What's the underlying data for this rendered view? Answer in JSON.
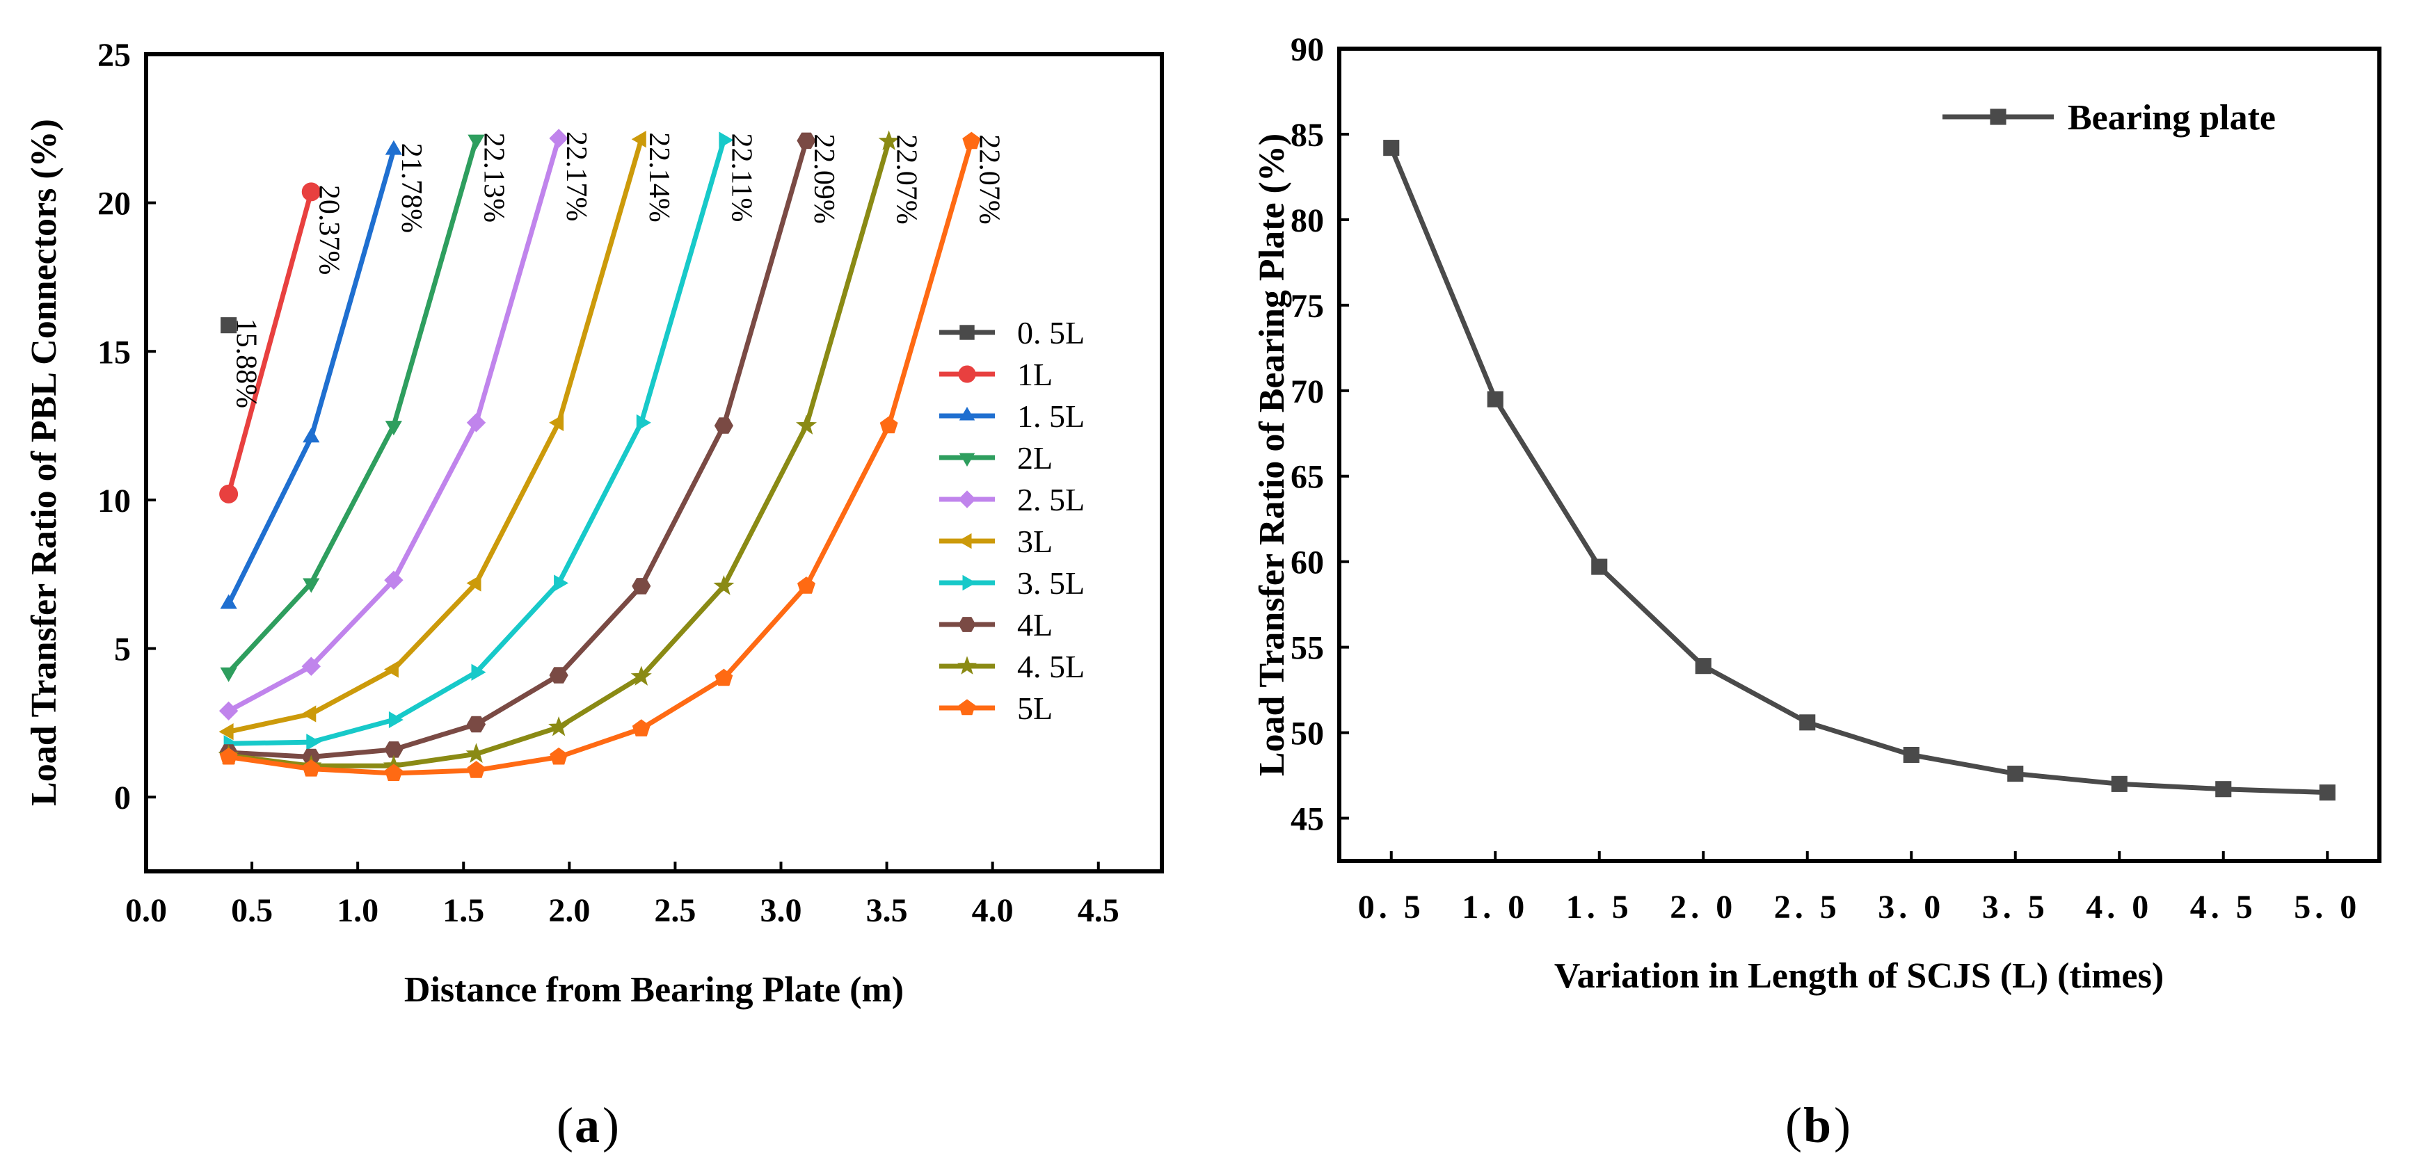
{
  "chart_data": [
    {
      "id": "a",
      "type": "line",
      "caption": "a",
      "xlabel": "Distance from Bearing Plate (m)",
      "ylabel": "Load Transfer Ratio of PBL Connectors (%)",
      "xlim": [
        0.0,
        4.8
      ],
      "ylim": [
        -2.5,
        25
      ],
      "xticks": [
        "0.0",
        "0.5",
        "1.0",
        "1.5",
        "2.0",
        "2.5",
        "3.0",
        "3.5",
        "4.0",
        "4.5"
      ],
      "xtick_values": [
        0,
        0.5,
        1.0,
        1.5,
        2.0,
        2.5,
        3.0,
        3.5,
        4.0,
        4.5
      ],
      "yticks": [
        "0",
        "5",
        "10",
        "15",
        "20",
        "25"
      ],
      "ytick_values": [
        0,
        5,
        10,
        15,
        20,
        25
      ],
      "series": [
        {
          "name": "0. 5L",
          "color": "#4a4a4a",
          "marker": "square",
          "x": [
            0.39
          ],
          "y": [
            15.88
          ],
          "end_label": "15.88%",
          "end_label_color": "#000000"
        },
        {
          "name": "1L",
          "color": "#e8403f",
          "marker": "circle",
          "x": [
            0.39,
            0.78
          ],
          "y": [
            10.2,
            20.37
          ],
          "end_label": "20.37%",
          "end_label_color": "#000000"
        },
        {
          "name": "1. 5L",
          "color": "#1f6fd0",
          "marker": "triangle-up",
          "x": [
            0.39,
            0.78,
            1.17
          ],
          "y": [
            6.5,
            12.1,
            21.78
          ],
          "end_label": "21.78%",
          "end_label_color": "#000000"
        },
        {
          "name": "2L",
          "color": "#2e9e5e",
          "marker": "triangle-down",
          "x": [
            0.39,
            0.78,
            1.17,
            1.56
          ],
          "y": [
            4.2,
            7.2,
            12.5,
            22.13
          ],
          "end_label": "22.13%",
          "end_label_color": "#000000"
        },
        {
          "name": "2. 5L",
          "color": "#c084ec",
          "marker": "diamond",
          "x": [
            0.39,
            0.78,
            1.17,
            1.56,
            1.95
          ],
          "y": [
            2.9,
            4.4,
            7.3,
            12.6,
            22.17
          ],
          "end_label": "22.17%",
          "end_label_color": "#e8403f"
        },
        {
          "name": "3L",
          "color": "#cc9a0a",
          "marker": "triangle-left",
          "x": [
            0.39,
            0.78,
            1.17,
            1.56,
            1.95,
            2.34
          ],
          "y": [
            2.2,
            2.8,
            4.3,
            7.2,
            12.6,
            22.14
          ],
          "end_label": "22.14%",
          "end_label_color": "#000000"
        },
        {
          "name": "3. 5L",
          "color": "#17c9c9",
          "marker": "triangle-right",
          "x": [
            0.39,
            0.78,
            1.17,
            1.56,
            1.95,
            2.34,
            2.73
          ],
          "y": [
            1.8,
            1.85,
            2.6,
            4.2,
            7.2,
            12.6,
            22.11
          ],
          "end_label": "22.11%",
          "end_label_color": "#000000"
        },
        {
          "name": "4L",
          "color": "#7a4a44",
          "marker": "hexagon",
          "x": [
            0.39,
            0.78,
            1.17,
            1.56,
            1.95,
            2.34,
            2.73,
            3.12
          ],
          "y": [
            1.5,
            1.35,
            1.6,
            2.45,
            4.1,
            7.1,
            12.5,
            22.09
          ],
          "end_label": "22.09%",
          "end_label_color": "#000000"
        },
        {
          "name": "4. 5L",
          "color": "#8a8a14",
          "marker": "star",
          "x": [
            0.39,
            0.78,
            1.17,
            1.56,
            1.95,
            2.34,
            2.73,
            3.12,
            3.51
          ],
          "y": [
            1.4,
            1.05,
            1.05,
            1.45,
            2.35,
            4.05,
            7.1,
            12.5,
            22.07
          ],
          "end_label": "22.07%",
          "end_label_color": "#000000"
        },
        {
          "name": "5L",
          "color": "#ff6a13",
          "marker": "pentagon",
          "x": [
            0.39,
            0.78,
            1.17,
            1.56,
            1.95,
            2.34,
            2.73,
            3.12,
            3.51,
            3.9
          ],
          "y": [
            1.35,
            0.95,
            0.8,
            0.9,
            1.35,
            2.3,
            4.0,
            7.1,
            12.5,
            22.07
          ],
          "end_label": "22.07%",
          "end_label_color": "#000000"
        }
      ],
      "legend_location": "right"
    },
    {
      "id": "b",
      "type": "line",
      "caption": "b",
      "xlabel": "Variation in Length of SCJS (L) (times)",
      "ylabel": "Load Transfer Ratio of Bearing Plate (%)",
      "xlim": [
        0.25,
        5.25
      ],
      "ylim": [
        42.5,
        90
      ],
      "xticks": [
        "0. 5",
        "1. 0",
        "1. 5",
        "2. 0",
        "2. 5",
        "3. 0",
        "3. 5",
        "4. 0",
        "4. 5",
        "5. 0"
      ],
      "xtick_values": [
        0.5,
        1.0,
        1.5,
        2.0,
        2.5,
        3.0,
        3.5,
        4.0,
        4.5,
        5.0
      ],
      "yticks": [
        "45",
        "50",
        "55",
        "60",
        "65",
        "70",
        "75",
        "80",
        "85",
        "90"
      ],
      "ytick_values": [
        45,
        50,
        55,
        60,
        65,
        70,
        75,
        80,
        85,
        90
      ],
      "series": [
        {
          "name": "Bearing plate",
          "color": "#4a4a4a",
          "marker": "square",
          "x": [
            0.5,
            1.0,
            1.5,
            2.0,
            2.5,
            3.0,
            3.5,
            4.0,
            4.5,
            5.0
          ],
          "y": [
            84.2,
            69.5,
            59.7,
            53.9,
            50.6,
            48.7,
            47.6,
            47.0,
            46.7,
            46.5
          ]
        }
      ],
      "legend_location": "top-right"
    }
  ]
}
